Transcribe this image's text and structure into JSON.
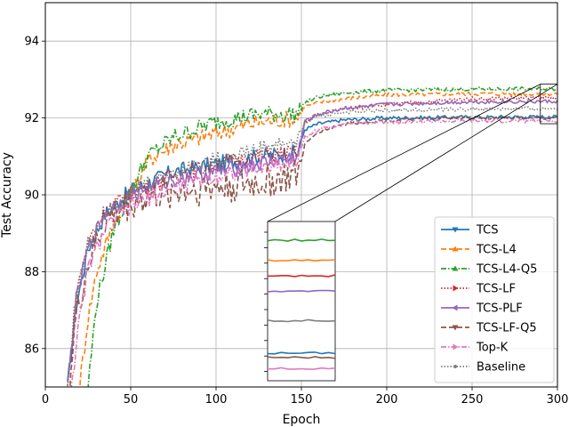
{
  "chart_data": {
    "type": "line",
    "title": "",
    "xlabel": "Epoch",
    "ylabel": "Test Accuracy",
    "xlim": [
      0,
      300
    ],
    "ylim": [
      85,
      95
    ],
    "xticks": [
      "0",
      "50",
      "100",
      "150",
      "200",
      "250",
      "300"
    ],
    "yticks": [
      "86",
      "88",
      "90",
      "92",
      "94"
    ],
    "grid": true,
    "legend_position": "lower-right",
    "inset": {
      "x_range": [
        290,
        300
      ],
      "y_range": [
        91.85,
        92.88
      ],
      "position": "lower-center"
    },
    "series": [
      {
        "name": "TCS",
        "color": "#1f77b4",
        "dash": "solid",
        "marker": "triangle-down",
        "x": [
          13,
          18,
          25,
          35,
          50,
          75,
          100,
          125,
          148,
          152,
          160,
          175,
          200,
          250,
          300
        ],
        "values": [
          85.0,
          87.1,
          88.6,
          89.5,
          90.1,
          90.6,
          90.8,
          91.0,
          91.1,
          91.7,
          91.85,
          91.95,
          92.0,
          92.02,
          92.03
        ]
      },
      {
        "name": "TCS-L4",
        "color": "#ff7f0e",
        "dash": "dashed",
        "marker": "triangle-up",
        "x": [
          20,
          25,
          30,
          40,
          50,
          60,
          75,
          100,
          125,
          148,
          152,
          160,
          175,
          200,
          250,
          300
        ],
        "values": [
          85.0,
          86.8,
          88.0,
          89.3,
          90.0,
          90.9,
          91.3,
          91.6,
          91.9,
          92.0,
          92.3,
          92.4,
          92.5,
          92.6,
          92.63,
          92.63
        ]
      },
      {
        "name": "TCS-L4-Q5",
        "color": "#2ca02c",
        "dash": "dashdot",
        "marker": "triangle-up",
        "x": [
          25,
          30,
          40,
          50,
          60,
          75,
          100,
          125,
          148,
          152,
          160,
          175,
          200,
          250,
          300
        ],
        "values": [
          85.0,
          87.2,
          89.1,
          90.1,
          91.0,
          91.5,
          91.9,
          92.1,
          92.1,
          92.4,
          92.55,
          92.65,
          92.72,
          92.75,
          92.76
        ]
      },
      {
        "name": "TCS-LF",
        "color": "#d62728",
        "dash": "dotted",
        "marker": "triangle-right",
        "x": [
          13,
          18,
          25,
          35,
          50,
          75,
          100,
          125,
          148,
          152,
          160,
          175,
          200,
          250,
          300
        ],
        "values": [
          85.0,
          87.4,
          88.8,
          89.6,
          90.0,
          90.5,
          90.8,
          91.0,
          91.1,
          91.9,
          92.1,
          92.25,
          92.35,
          92.5,
          92.53
        ]
      },
      {
        "name": "TCS-PLF",
        "color": "#9467bd",
        "dash": "solid",
        "marker": "triangle-left",
        "x": [
          13,
          18,
          25,
          35,
          50,
          75,
          100,
          125,
          148,
          152,
          160,
          175,
          200,
          250,
          300
        ],
        "values": [
          85.0,
          87.2,
          88.6,
          89.5,
          90.0,
          90.4,
          90.6,
          90.8,
          91.0,
          91.9,
          92.1,
          92.25,
          92.35,
          92.42,
          92.43
        ]
      },
      {
        "name": "TCS-LF-Q5",
        "color": "#8c564b",
        "dash": "dashed",
        "marker": "triangle-down",
        "x": [
          14,
          18,
          25,
          35,
          50,
          75,
          100,
          125,
          148,
          152,
          160,
          175,
          200,
          250,
          300
        ],
        "values": [
          85.0,
          86.8,
          88.2,
          89.3,
          89.8,
          90.1,
          90.2,
          90.3,
          90.5,
          91.3,
          91.65,
          91.85,
          91.95,
          92.0,
          92.0
        ]
      },
      {
        "name": "Top-K",
        "color": "#e377c2",
        "dash": "dashdot",
        "marker": "triangle-right",
        "x": [
          15,
          20,
          25,
          35,
          50,
          75,
          100,
          125,
          148,
          152,
          160,
          175,
          200,
          250,
          300
        ],
        "values": [
          85.0,
          86.7,
          88.1,
          89.1,
          89.7,
          90.2,
          90.5,
          90.7,
          90.9,
          91.5,
          91.7,
          91.85,
          91.9,
          91.92,
          91.93
        ]
      },
      {
        "name": "Baseline",
        "color": "#7f7f7f",
        "dash": "dotted",
        "marker": "dot",
        "x": [
          13,
          18,
          25,
          35,
          50,
          75,
          100,
          125,
          148,
          152,
          160,
          175,
          200,
          250,
          300
        ],
        "values": [
          85.0,
          87.3,
          88.7,
          89.6,
          90.1,
          90.6,
          90.9,
          91.2,
          91.4,
          91.9,
          92.05,
          92.15,
          92.2,
          92.23,
          92.24
        ]
      }
    ]
  }
}
